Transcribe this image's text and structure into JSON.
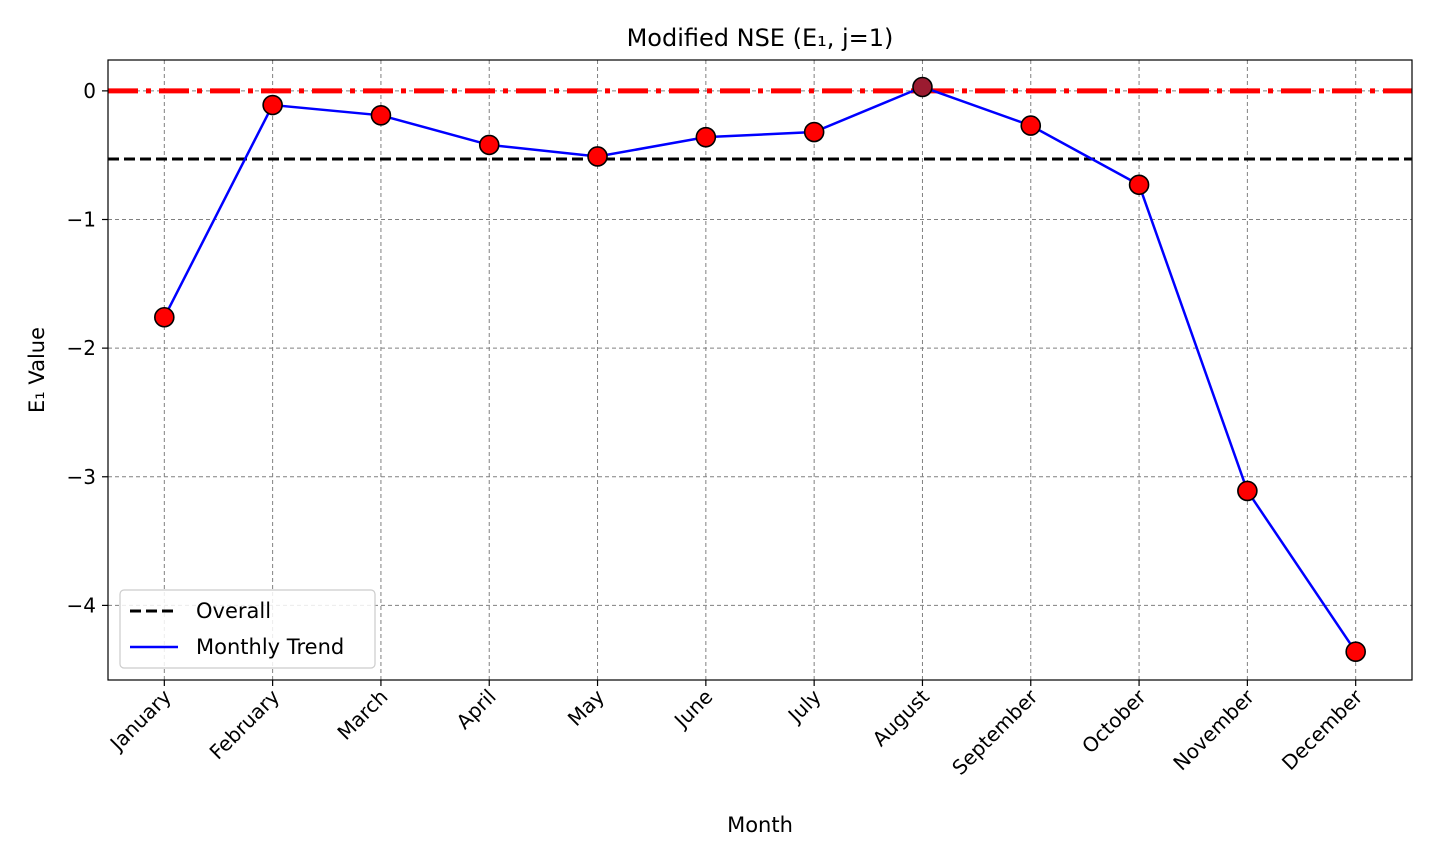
{
  "chart_data": {
    "type": "line",
    "title": "Modified NSE (E₁, j=1)",
    "xlabel": "Month",
    "ylabel": "E₁ Value",
    "categories": [
      "January",
      "February",
      "March",
      "April",
      "May",
      "June",
      "July",
      "August",
      "September",
      "October",
      "November",
      "December"
    ],
    "series": [
      {
        "name": "Monthly Trend",
        "values": [
          -1.76,
          -0.11,
          -0.19,
          -0.42,
          -0.51,
          -0.36,
          -0.32,
          0.03,
          -0.27,
          -0.73,
          -3.11,
          -4.36
        ],
        "line_color": "#0000ff",
        "marker_color": "#ff0000",
        "marker_edge": "#000000"
      }
    ],
    "highlight": {
      "index": 7,
      "marker_color": "#9b1b30"
    },
    "reference_lines": [
      {
        "name": "Overall",
        "y": -0.53,
        "color": "#000000",
        "style": "dashed"
      },
      {
        "name": "",
        "y": 0,
        "color": "#ff0000",
        "style": "dash-dot"
      }
    ],
    "ylim": [
      -4.58,
      0.24
    ],
    "yticks": [
      0,
      -1,
      -2,
      -3,
      -4
    ],
    "ytick_labels": [
      "0",
      "−1",
      "−2",
      "−3",
      "−4"
    ],
    "grid": true,
    "grid_color": "#808080",
    "legend": {
      "placement": "lower-left",
      "entries": [
        "Overall",
        "Monthly Trend"
      ]
    }
  }
}
